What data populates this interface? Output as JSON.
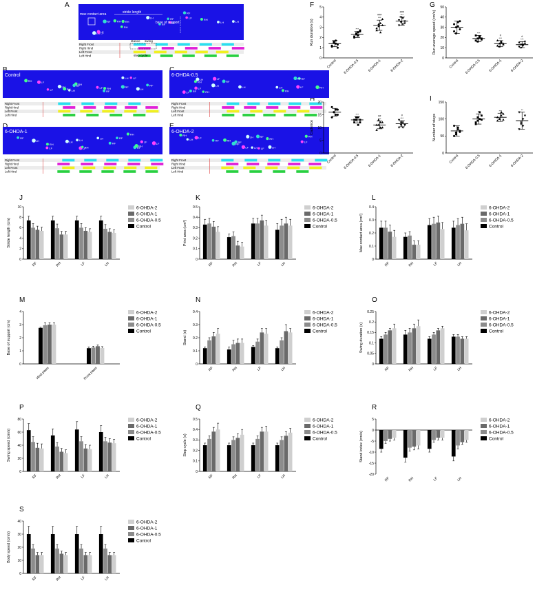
{
  "panel_labels": [
    "A",
    "B",
    "C",
    "D",
    "E",
    "F",
    "G",
    "H",
    "I",
    "J",
    "K",
    "L",
    "M",
    "N",
    "O",
    "P",
    "Q",
    "R",
    "S"
  ],
  "gait_rows": [
    "Right Front",
    "Right Hind",
    "Left Front",
    "Left Hind"
  ],
  "paw_codes": [
    "RF",
    "RH",
    "LF",
    "LH"
  ],
  "gait_colors": [
    "#29e0f0",
    "#e020d8",
    "#f0f020",
    "#28d040"
  ],
  "group_colors": [
    "#000000",
    "#8c8c8c",
    "#6a6a6a",
    "#cfcfcf"
  ],
  "legend_entries": [
    "6-OHDA-2",
    "6-OHDA-1",
    "6-OHDA-0.5",
    "Control"
  ],
  "panel_a": {
    "annotations": [
      "max contact area",
      "stride length",
      "base of support",
      "stance",
      "swing",
      "step cycle"
    ]
  },
  "footprint_titles": [
    {
      "panel": "B",
      "title": "Control"
    },
    {
      "panel": "C",
      "title": "6-OHDA-0.5"
    },
    {
      "panel": "D",
      "title": "6-OHDA-1"
    },
    {
      "panel": "E",
      "title": "6-OHDA-2"
    }
  ],
  "chart_data": [
    {
      "panel": "F",
      "type": "scatter",
      "ylabel": "Run duration (s)",
      "ylim": [
        0,
        5
      ],
      "yticks": [
        0,
        1,
        2,
        3,
        4,
        5
      ],
      "categories": [
        "Control",
        "6-OHDA-0.5",
        "6-OHDA-1",
        "6-OHDA-2"
      ],
      "means": [
        1.4,
        2.3,
        3.2,
        3.6
      ],
      "sd": [
        0.3,
        0.3,
        0.5,
        0.4
      ],
      "points": [
        [
          1.2,
          1.5,
          1.7,
          1.3,
          1.1,
          1.6,
          1.4,
          1.0
        ],
        [
          2.0,
          2.3,
          2.5,
          2.6,
          2.1,
          2.4,
          2.2,
          2.7
        ],
        [
          2.7,
          3.1,
          3.4,
          3.8,
          2.9,
          3.3,
          2.5,
          3.2
        ],
        [
          3.2,
          3.5,
          3.9,
          3.4,
          3.7,
          4.0,
          3.3,
          3.6
        ]
      ],
      "significance": [
        "",
        "***",
        "###\n***",
        "###\n***"
      ]
    },
    {
      "panel": "G",
      "type": "scatter",
      "ylabel": "Run average speed (cm/s)",
      "ylim": [
        0,
        50
      ],
      "yticks": [
        0,
        10,
        20,
        30,
        40,
        50
      ],
      "categories": [
        "Control",
        "6-OHDA-0.5",
        "6-OHDA-1",
        "6-OHDA-2"
      ],
      "means": [
        30,
        19,
        14,
        13
      ],
      "sd": [
        6,
        3,
        3,
        3
      ],
      "points": [
        [
          26,
          30,
          35,
          28,
          33,
          24,
          31,
          36
        ],
        [
          17,
          19,
          21,
          18,
          22,
          16,
          20,
          19
        ],
        [
          12,
          14,
          15,
          13,
          17,
          11,
          16,
          14
        ],
        [
          11,
          13,
          12,
          14,
          15,
          10,
          13,
          16
        ]
      ],
      "significance": [
        "",
        "***",
        "#\n***",
        "#\n***"
      ]
    },
    {
      "panel": "H",
      "type": "scatter",
      "ylabel": "Cadence",
      "ylim": [
        0,
        20
      ],
      "yticks": [
        0,
        5,
        10,
        15,
        20
      ],
      "categories": [
        "Control",
        "6-OHDA-0.5",
        "6-OHDA-1",
        "6-OHDA-2"
      ],
      "means": [
        16,
        13,
        11,
        11.5
      ],
      "sd": [
        1.5,
        1.2,
        1.5,
        1.2
      ],
      "points": [
        [
          14,
          16,
          17,
          15,
          18,
          16,
          15,
          17
        ],
        [
          12,
          13,
          14,
          12,
          13,
          14,
          11,
          13
        ],
        [
          9,
          11,
          12,
          10,
          11,
          13,
          10,
          12
        ],
        [
          10,
          11,
          12,
          11,
          13,
          12,
          10,
          11
        ]
      ],
      "significance": [
        "",
        "***",
        "##\n***",
        "#\n***"
      ]
    },
    {
      "panel": "I",
      "type": "scatter",
      "ylabel": "Number of steps",
      "ylim": [
        0,
        150
      ],
      "yticks": [
        0,
        50,
        100,
        150
      ],
      "categories": [
        "Control",
        "6-OHDA-0.5",
        "6-OHDA-1",
        "6-OHDA-2"
      ],
      "means": [
        65,
        100,
        105,
        95
      ],
      "sd": [
        15,
        15,
        12,
        25
      ],
      "points": [
        [
          50,
          60,
          70,
          65,
          80,
          55,
          75,
          62
        ],
        [
          85,
          95,
          100,
          110,
          90,
          105,
          120,
          98
        ],
        [
          95,
          100,
          110,
          115,
          105,
          100,
          120,
          98
        ],
        [
          70,
          85,
          100,
          110,
          120,
          90,
          80
        ]
      ],
      "significance": [
        "",
        "**",
        "***",
        "**"
      ]
    },
    {
      "panel": "J",
      "type": "bar",
      "ylabel": "Stride length (cm)",
      "ylim": [
        0,
        10
      ],
      "yticks": [
        0,
        2,
        4,
        6,
        8,
        10
      ],
      "categories": [
        "RF",
        "RH",
        "LF",
        "LH"
      ],
      "series": [
        {
          "name": "Control",
          "values": [
            7.4,
            7.4,
            7.4,
            7.4
          ],
          "err": [
            0.8,
            0.8,
            0.8,
            0.8
          ]
        },
        {
          "name": "6-OHDA-0.5",
          "values": [
            6.0,
            5.9,
            6.0,
            5.8
          ],
          "err": [
            0.8,
            0.8,
            0.8,
            0.8
          ]
        },
        {
          "name": "6-OHDA-1",
          "values": [
            5.6,
            4.7,
            5.4,
            5.2
          ],
          "err": [
            0.7,
            0.6,
            0.6,
            0.6
          ]
        },
        {
          "name": "6-OHDA-2",
          "values": [
            5.4,
            4.7,
            5.2,
            5.0
          ],
          "err": [
            0.7,
            0.6,
            0.6,
            0.6
          ]
        }
      ]
    },
    {
      "panel": "K",
      "type": "bar",
      "ylabel": "Print area (cm²)",
      "ylim": [
        0,
        0.5
      ],
      "yticks": [
        0,
        0.1,
        0.2,
        0.3,
        0.4,
        0.5
      ],
      "categories": [
        "RF",
        "RH",
        "LF",
        "LH"
      ],
      "series": [
        {
          "name": "Control",
          "values": [
            0.33,
            0.21,
            0.34,
            0.28
          ],
          "err": [
            0.05,
            0.03,
            0.05,
            0.06
          ]
        },
        {
          "name": "6-OHDA-0.5",
          "values": [
            0.34,
            0.22,
            0.34,
            0.32
          ],
          "err": [
            0.05,
            0.04,
            0.05,
            0.06
          ]
        },
        {
          "name": "6-OHDA-1",
          "values": [
            0.31,
            0.13,
            0.37,
            0.34
          ],
          "err": [
            0.05,
            0.04,
            0.05,
            0.06
          ]
        },
        {
          "name": "6-OHDA-2",
          "values": [
            0.26,
            0.12,
            0.32,
            0.32
          ],
          "err": [
            0.05,
            0.04,
            0.05,
            0.06
          ]
        }
      ]
    },
    {
      "panel": "L",
      "type": "bar",
      "ylabel": "Max contact area (cm²)",
      "ylim": [
        0,
        0.4
      ],
      "yticks": [
        0,
        0.1,
        0.2,
        0.3,
        0.4
      ],
      "categories": [
        "RF",
        "RH",
        "LF",
        "LH"
      ],
      "series": [
        {
          "name": "Control",
          "values": [
            0.24,
            0.17,
            0.26,
            0.24
          ],
          "err": [
            0.05,
            0.03,
            0.05,
            0.05
          ]
        },
        {
          "name": "6-OHDA-0.5",
          "values": [
            0.24,
            0.18,
            0.27,
            0.26
          ],
          "err": [
            0.05,
            0.03,
            0.05,
            0.05
          ]
        },
        {
          "name": "6-OHDA-1",
          "values": [
            0.21,
            0.11,
            0.28,
            0.27
          ],
          "err": [
            0.05,
            0.03,
            0.05,
            0.05
          ]
        },
        {
          "name": "6-OHDA-2",
          "values": [
            0.17,
            0.11,
            0.23,
            0.22
          ],
          "err": [
            0.05,
            0.03,
            0.05,
            0.05
          ]
        }
      ]
    },
    {
      "panel": "M",
      "type": "bar",
      "ylabel": "Base of support (cm)",
      "ylim": [
        0,
        4
      ],
      "yticks": [
        0,
        1,
        2,
        3,
        4
      ],
      "categories": [
        "Hind paws",
        "Front paws"
      ],
      "series": [
        {
          "name": "Control",
          "values": [
            2.75,
            1.2
          ],
          "err": [
            0.05,
            0.1
          ]
        },
        {
          "name": "6-OHDA-0.5",
          "values": [
            2.95,
            1.25
          ],
          "err": [
            0.2,
            0.1
          ]
        },
        {
          "name": "6-OHDA-1",
          "values": [
            3.0,
            1.35
          ],
          "err": [
            0.15,
            0.1
          ]
        },
        {
          "name": "6-OHDA-2",
          "values": [
            3.0,
            1.22
          ],
          "err": [
            0.15,
            0.1
          ]
        }
      ]
    },
    {
      "panel": "N",
      "type": "bar",
      "ylabel": "Stand (s)",
      "ylim": [
        0,
        0.4
      ],
      "yticks": [
        0,
        0.1,
        0.2,
        0.3,
        0.4
      ],
      "categories": [
        "RF",
        "RH",
        "LF",
        "LH"
      ],
      "series": [
        {
          "name": "Control",
          "values": [
            0.12,
            0.11,
            0.13,
            0.12
          ],
          "err": [
            0.01,
            0.02,
            0.01,
            0.01
          ]
        },
        {
          "name": "6-OHDA-0.5",
          "values": [
            0.18,
            0.15,
            0.17,
            0.18
          ],
          "err": [
            0.02,
            0.03,
            0.02,
            0.02
          ]
        },
        {
          "name": "6-OHDA-1",
          "values": [
            0.21,
            0.16,
            0.24,
            0.25
          ],
          "err": [
            0.03,
            0.03,
            0.03,
            0.05
          ]
        },
        {
          "name": "6-OHDA-2",
          "values": [
            0.23,
            0.16,
            0.23,
            0.24
          ],
          "err": [
            0.04,
            0.03,
            0.04,
            0.03
          ]
        }
      ]
    },
    {
      "panel": "O",
      "type": "bar",
      "ylabel": "Swing duration (s)",
      "ylim": [
        0,
        0.25
      ],
      "yticks": [
        0,
        0.05,
        0.1,
        0.15,
        0.2,
        0.25
      ],
      "categories": [
        "RF",
        "RH",
        "LF",
        "LH"
      ],
      "series": [
        {
          "name": "Control",
          "values": [
            0.12,
            0.14,
            0.12,
            0.13
          ],
          "err": [
            0.01,
            0.02,
            0.01,
            0.01
          ]
        },
        {
          "name": "6-OHDA-0.5",
          "values": [
            0.14,
            0.15,
            0.14,
            0.13
          ],
          "err": [
            0.01,
            0.02,
            0.01,
            0.01
          ]
        },
        {
          "name": "6-OHDA-1",
          "values": [
            0.16,
            0.17,
            0.16,
            0.12
          ],
          "err": [
            0.01,
            0.02,
            0.01,
            0.01
          ]
        },
        {
          "name": "6-OHDA-2",
          "values": [
            0.17,
            0.18,
            0.17,
            0.12
          ],
          "err": [
            0.02,
            0.03,
            0.01,
            0.01
          ]
        }
      ]
    },
    {
      "panel": "P",
      "type": "bar",
      "ylabel": "Swing speed (cm/s)",
      "ylim": [
        0,
        80
      ],
      "yticks": [
        0,
        20,
        40,
        60,
        80
      ],
      "categories": [
        "RF",
        "RH",
        "LF",
        "LH"
      ],
      "series": [
        {
          "name": "Control",
          "values": [
            63,
            55,
            64,
            60
          ],
          "err": [
            10,
            10,
            12,
            10
          ]
        },
        {
          "name": "6-OHDA-0.5",
          "values": [
            45,
            38,
            46,
            46
          ],
          "err": [
            8,
            6,
            7,
            6
          ]
        },
        {
          "name": "6-OHDA-1",
          "values": [
            36,
            30,
            35,
            44
          ],
          "err": [
            7,
            5,
            6,
            6
          ]
        },
        {
          "name": "6-OHDA-2",
          "values": [
            35,
            28,
            34,
            43
          ],
          "err": [
            7,
            5,
            6,
            6
          ]
        }
      ]
    },
    {
      "panel": "Q",
      "type": "bar",
      "ylabel": "Step cycle (s)",
      "ylim": [
        0,
        0.5
      ],
      "yticks": [
        0,
        0.1,
        0.2,
        0.3,
        0.4,
        0.5
      ],
      "categories": [
        "RF",
        "RH",
        "LF",
        "LH"
      ],
      "series": [
        {
          "name": "Control",
          "values": [
            0.25,
            0.25,
            0.25,
            0.25
          ],
          "err": [
            0.02,
            0.02,
            0.02,
            0.02
          ]
        },
        {
          "name": "6-OHDA-0.5",
          "values": [
            0.31,
            0.3,
            0.31,
            0.3
          ],
          "err": [
            0.03,
            0.03,
            0.03,
            0.03
          ]
        },
        {
          "name": "6-OHDA-1",
          "values": [
            0.38,
            0.32,
            0.38,
            0.34
          ],
          "err": [
            0.04,
            0.04,
            0.04,
            0.04
          ]
        },
        {
          "name": "6-OHDA-2",
          "values": [
            0.4,
            0.35,
            0.38,
            0.37
          ],
          "err": [
            0.06,
            0.05,
            0.05,
            0.04
          ]
        }
      ]
    },
    {
      "panel": "R",
      "type": "bar",
      "ylabel": "Stand index (cm/s)",
      "ylim": [
        -20,
        5
      ],
      "yticks": [
        -20,
        -15,
        -10,
        -5,
        0,
        5
      ],
      "categories": [
        "RF",
        "RH",
        "LF",
        "LH"
      ],
      "series": [
        {
          "name": "Control",
          "values": [
            -8.5,
            -12.5,
            -8.5,
            -12
          ],
          "err": [
            1.5,
            2,
            1.5,
            2
          ]
        },
        {
          "name": "6-OHDA-0.5",
          "values": [
            -5,
            -8,
            -4.5,
            -7
          ],
          "err": [
            1,
            1.5,
            1,
            1.5
          ]
        },
        {
          "name": "6-OHDA-1",
          "values": [
            -4,
            -7.5,
            -3.5,
            -5.5
          ],
          "err": [
            1,
            1.5,
            1,
            1
          ]
        },
        {
          "name": "6-OHDA-2",
          "values": [
            -3.5,
            -7,
            -3.5,
            -4.5
          ],
          "err": [
            1,
            1.5,
            1,
            1
          ]
        }
      ]
    },
    {
      "panel": "S",
      "type": "bar",
      "ylabel": "Body speed (cm/s)",
      "ylim": [
        0,
        40
      ],
      "yticks": [
        0,
        10,
        20,
        30,
        40
      ],
      "categories": [
        "RF",
        "RH",
        "LF",
        "LH"
      ],
      "series": [
        {
          "name": "Control",
          "values": [
            30,
            30,
            30,
            30
          ],
          "err": [
            6,
            6,
            6,
            6
          ]
        },
        {
          "name": "6-OHDA-0.5",
          "values": [
            19,
            19,
            19,
            19
          ],
          "err": [
            3,
            3,
            3,
            3
          ]
        },
        {
          "name": "6-OHDA-1",
          "values": [
            14,
            15,
            14,
            14
          ],
          "err": [
            2,
            2,
            2,
            2
          ]
        },
        {
          "name": "6-OHDA-2",
          "values": [
            14,
            14,
            14,
            14
          ],
          "err": [
            2,
            2,
            2,
            2
          ]
        }
      ]
    }
  ]
}
